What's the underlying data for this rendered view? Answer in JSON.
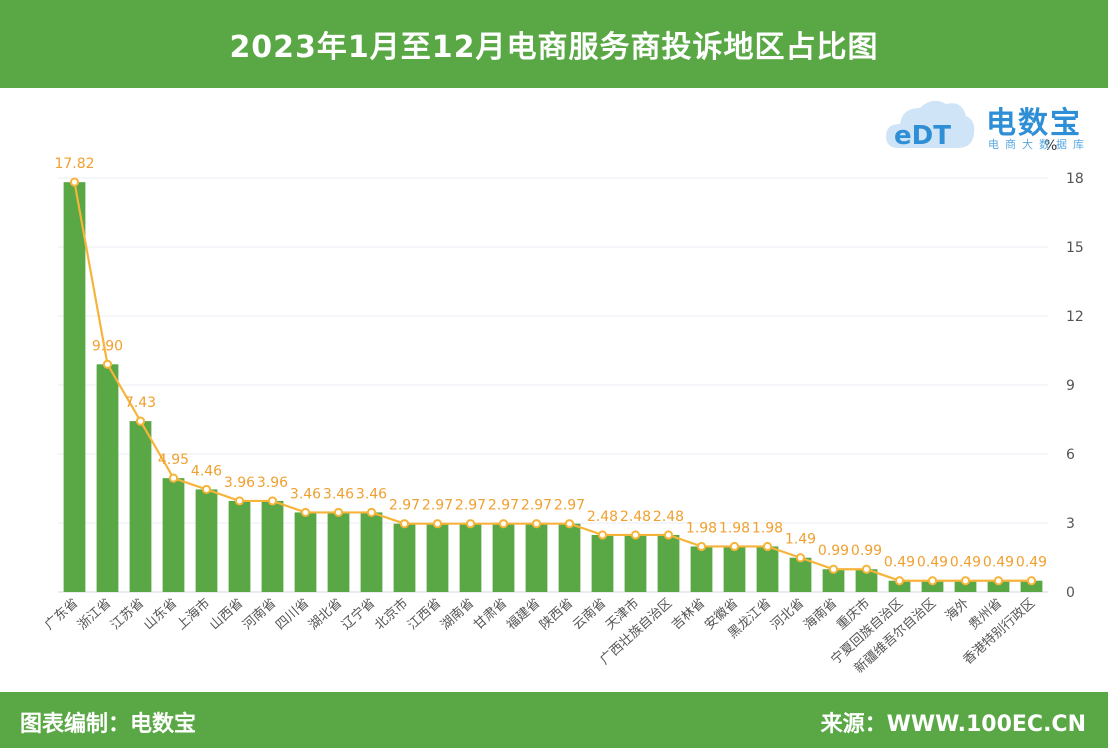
{
  "header": {
    "title": "2023年1月至12月电商服务商投诉地区占比图"
  },
  "footer": {
    "left_text": "图表编制：电数宝",
    "right_text": "来源：WWW.100EC.CN"
  },
  "logo": {
    "brand": "电数宝",
    "sub": "电商大数据库",
    "mark": "eDT"
  },
  "colors": {
    "green": "#5aa845",
    "bar": "#5aa845",
    "line": "#f6b43a",
    "label": "#f0a030",
    "axis_text": "#555555",
    "grid": "#e8eef4"
  },
  "chart_data": {
    "type": "bar",
    "title": "2023年1月至12月电商服务商投诉地区占比图",
    "ylabel": "%",
    "ylim": [
      0,
      18
    ],
    "yticks": [
      0,
      3,
      6,
      9,
      12,
      15,
      18
    ],
    "grid": true,
    "categories": [
      "广东省",
      "浙江省",
      "江苏省",
      "山东省",
      "上海市",
      "山西省",
      "河南省",
      "四川省",
      "湖北省",
      "辽宁省",
      "北京市",
      "江西省",
      "湖南省",
      "甘肃省",
      "福建省",
      "陕西省",
      "云南省",
      "天津市",
      "广西壮族自治区",
      "吉林省",
      "安徽省",
      "黑龙江省",
      "河北省",
      "海南省",
      "重庆市",
      "宁夏回族自治区",
      "新疆维吾尔自治区",
      "海外",
      "贵州省",
      "香港特别行政区"
    ],
    "series": [
      {
        "name": "",
        "type": "bar",
        "values": [
          17.82,
          9.9,
          7.43,
          4.95,
          4.46,
          3.96,
          3.96,
          3.46,
          3.46,
          3.46,
          2.97,
          2.97,
          2.97,
          2.97,
          2.97,
          2.97,
          2.48,
          2.48,
          2.48,
          1.98,
          1.98,
          1.98,
          1.49,
          0.99,
          0.99,
          0.49,
          0.49,
          0.49,
          0.49,
          0.49
        ]
      },
      {
        "name": "",
        "type": "line",
        "values": [
          17.82,
          9.9,
          7.43,
          4.95,
          4.46,
          3.96,
          3.96,
          3.46,
          3.46,
          3.46,
          2.97,
          2.97,
          2.97,
          2.97,
          2.97,
          2.97,
          2.48,
          2.48,
          2.48,
          1.98,
          1.98,
          1.98,
          1.49,
          0.99,
          0.99,
          0.49,
          0.49,
          0.49,
          0.49,
          0.49
        ]
      }
    ],
    "data_labels": [
      "17.82",
      "9.90",
      "7.43",
      "4.95",
      "4.46",
      "3.96",
      "3.96",
      "3.46",
      "3.46",
      "3.46",
      "2.97",
      "2.97",
      "2.97",
      "2.97",
      "2.97",
      "2.97",
      "2.48",
      "2.48",
      "2.48",
      "1.98",
      "1.98",
      "1.98",
      "1.49",
      "0.99",
      "0.99",
      "0.49",
      "0.49",
      "0.49",
      "0.49",
      "0.49"
    ]
  }
}
